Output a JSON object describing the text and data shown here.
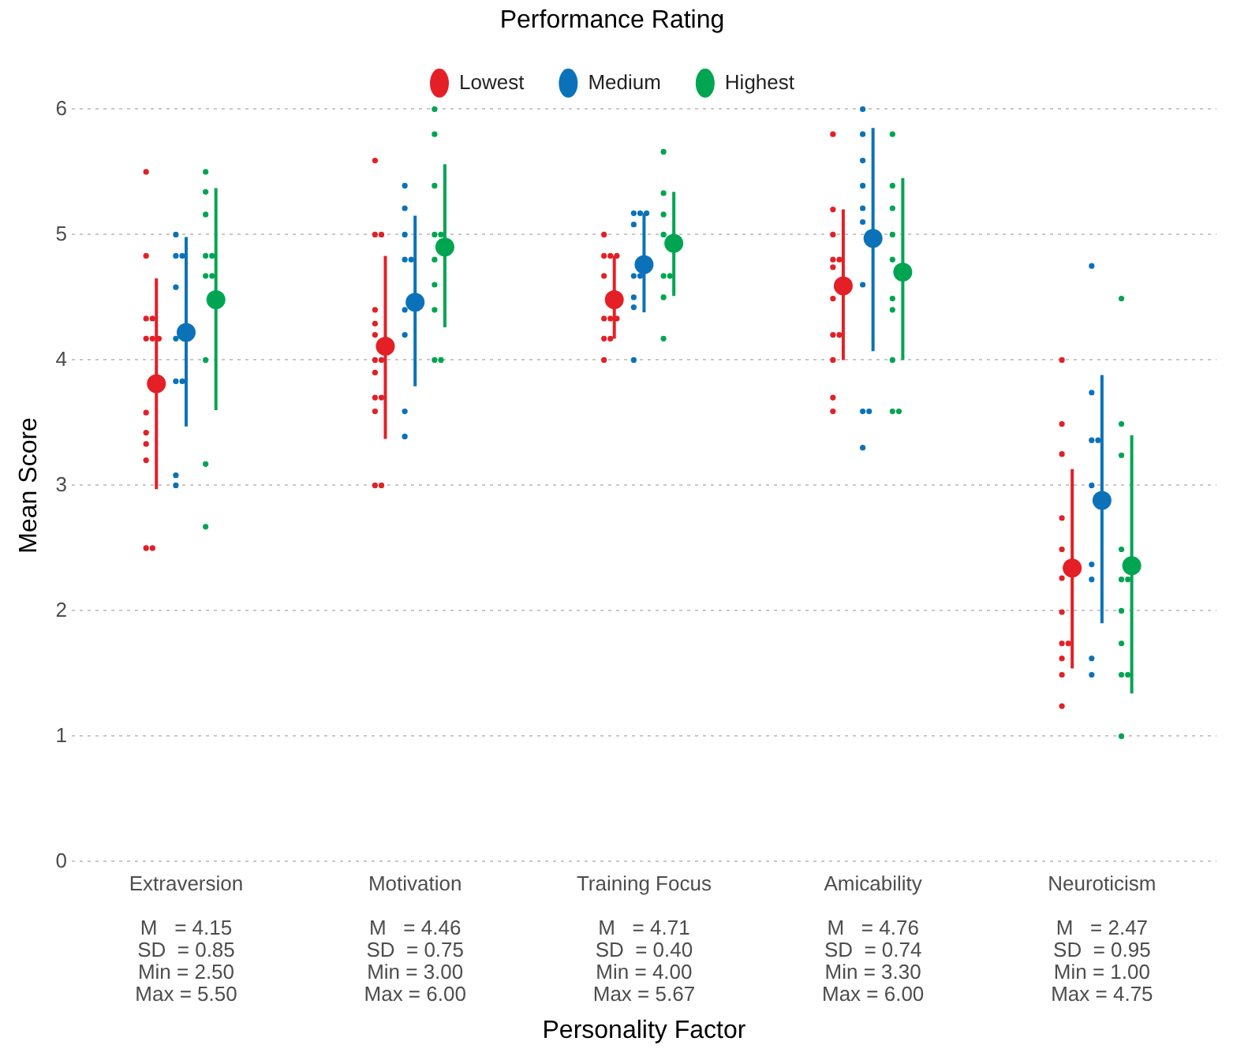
{
  "chart_data": {
    "type": "scatter",
    "xlabel": "Personality Factor",
    "ylabel": "Mean Score",
    "legend_title": "Performance Rating",
    "legend": "top",
    "grid": "y",
    "marker": "circle",
    "categories": [
      "Extraversion",
      "Motivation",
      "Training Focus",
      "Amicability",
      "Neuroticism"
    ],
    "ylim": [
      0,
      6
    ],
    "yticks": [
      0,
      1,
      2,
      3,
      4,
      5,
      6
    ],
    "series": [
      {
        "name": "Lowest",
        "color": "#e41f26",
        "values": [
          3.81,
          4.11,
          4.48,
          4.59,
          2.34
        ],
        "errors": [
          [
            2.97,
            4.65
          ],
          [
            3.37,
            4.83
          ],
          [
            4.17,
            4.83
          ],
          [
            4.0,
            5.2
          ],
          [
            1.54,
            3.13
          ]
        ]
      },
      {
        "name": "Medium",
        "color": "#0b72b9",
        "values": [
          4.22,
          4.46,
          4.76,
          4.97,
          2.88
        ],
        "errors": [
          [
            3.47,
            4.98
          ],
          [
            3.79,
            5.15
          ],
          [
            4.38,
            5.17
          ],
          [
            4.07,
            5.85
          ],
          [
            1.9,
            3.88
          ]
        ]
      },
      {
        "name": "Highest",
        "color": "#00a551",
        "values": [
          4.48,
          4.9,
          4.93,
          4.7,
          2.36
        ],
        "errors": [
          [
            3.6,
            5.37
          ],
          [
            4.26,
            5.56
          ],
          [
            4.51,
            5.34
          ],
          [
            4.0,
            5.45
          ],
          [
            1.34,
            3.4
          ]
        ]
      },
      {
        "type": "scatter",
        "color": "#e41f26",
        "x": [
          "Extraversion",
          "Extraversion",
          "Extraversion",
          "Extraversion",
          "Extraversion",
          "Extraversion",
          "Extraversion",
          "Extraversion",
          "Extraversion",
          "Extraversion",
          "Extraversion",
          "Extraversion",
          "Extraversion",
          "Motivation",
          "Motivation",
          "Motivation",
          "Motivation",
          "Motivation",
          "Motivation",
          "Motivation",
          "Motivation",
          "Motivation",
          "Motivation",
          "Motivation",
          "Motivation",
          "Motivation",
          "Motivation",
          "Training Focus",
          "Training Focus",
          "Training Focus",
          "Training Focus",
          "Training Focus",
          "Training Focus",
          "Training Focus",
          "Training Focus",
          "Training Focus",
          "Training Focus",
          "Training Focus",
          "Amicability",
          "Amicability",
          "Amicability",
          "Amicability",
          "Amicability",
          "Amicability",
          "Amicability",
          "Amicability",
          "Amicability",
          "Amicability",
          "Amicability",
          "Amicability",
          "Neuroticism",
          "Neuroticism",
          "Neuroticism",
          "Neuroticism",
          "Neuroticism",
          "Neuroticism",
          "Neuroticism",
          "Neuroticism",
          "Neuroticism",
          "Neuroticism",
          "Neuroticism",
          "Neuroticism"
        ],
        "values": [
          5.5,
          4.83,
          4.33,
          4.33,
          4.17,
          4.17,
          4.17,
          3.58,
          3.42,
          3.33,
          3.2,
          2.5,
          2.5,
          5.59,
          5.0,
          5.0,
          4.4,
          4.29,
          4.2,
          4.0,
          4.0,
          3.9,
          3.7,
          3.7,
          3.59,
          3.0,
          3.0,
          5.0,
          4.83,
          4.83,
          4.83,
          4.67,
          4.33,
          4.33,
          4.33,
          4.17,
          4.17,
          4.0,
          5.8,
          5.2,
          5.0,
          4.8,
          4.8,
          4.74,
          4.49,
          4.2,
          4.2,
          4.0,
          3.7,
          3.59,
          4.0,
          3.49,
          3.25,
          2.74,
          2.49,
          2.26,
          1.99,
          1.74,
          1.74,
          1.62,
          1.49,
          1.24
        ]
      },
      {
        "type": "scatter",
        "color": "#0b72b9",
        "x": [
          "Extraversion",
          "Extraversion",
          "Extraversion",
          "Extraversion",
          "Extraversion",
          "Extraversion",
          "Extraversion",
          "Extraversion",
          "Extraversion",
          "Motivation",
          "Motivation",
          "Motivation",
          "Motivation",
          "Motivation",
          "Motivation",
          "Motivation",
          "Motivation",
          "Motivation",
          "Training Focus",
          "Training Focus",
          "Training Focus",
          "Training Focus",
          "Training Focus",
          "Training Focus",
          "Training Focus",
          "Training Focus",
          "Training Focus",
          "Amicability",
          "Amicability",
          "Amicability",
          "Amicability",
          "Amicability",
          "Amicability",
          "Amicability",
          "Amicability",
          "Amicability",
          "Amicability",
          "Neuroticism",
          "Neuroticism",
          "Neuroticism",
          "Neuroticism",
          "Neuroticism",
          "Neuroticism",
          "Neuroticism",
          "Neuroticism",
          "Neuroticism"
        ],
        "values": [
          5.0,
          4.83,
          4.83,
          4.58,
          4.17,
          3.83,
          3.83,
          3.08,
          3.0,
          5.39,
          5.21,
          5.0,
          4.8,
          4.8,
          4.4,
          4.2,
          3.59,
          3.39,
          5.17,
          5.17,
          5.17,
          5.08,
          4.67,
          4.67,
          4.5,
          4.42,
          4.0,
          6.0,
          5.8,
          5.59,
          5.39,
          5.21,
          5.1,
          4.6,
          3.59,
          3.59,
          3.3,
          4.75,
          3.74,
          3.36,
          3.36,
          3.0,
          2.37,
          2.25,
          1.62,
          1.49
        ]
      },
      {
        "type": "scatter",
        "color": "#00a551",
        "x": [
          "Extraversion",
          "Extraversion",
          "Extraversion",
          "Extraversion",
          "Extraversion",
          "Extraversion",
          "Extraversion",
          "Extraversion",
          "Extraversion",
          "Extraversion",
          "Motivation",
          "Motivation",
          "Motivation",
          "Motivation",
          "Motivation",
          "Motivation",
          "Motivation",
          "Motivation",
          "Motivation",
          "Motivation",
          "Training Focus",
          "Training Focus",
          "Training Focus",
          "Training Focus",
          "Training Focus",
          "Training Focus",
          "Training Focus",
          "Training Focus",
          "Amicability",
          "Amicability",
          "Amicability",
          "Amicability",
          "Amicability",
          "Amicability",
          "Amicability",
          "Amicability",
          "Amicability",
          "Amicability",
          "Neuroticism",
          "Neuroticism",
          "Neuroticism",
          "Neuroticism",
          "Neuroticism",
          "Neuroticism",
          "Neuroticism",
          "Neuroticism",
          "Neuroticism",
          "Neuroticism",
          "Neuroticism"
        ],
        "values": [
          5.5,
          5.34,
          5.16,
          4.83,
          4.83,
          4.67,
          4.67,
          4.0,
          3.17,
          2.67,
          6.0,
          5.8,
          5.39,
          5.0,
          5.0,
          4.8,
          4.6,
          4.4,
          4.0,
          4.0,
          5.66,
          5.33,
          5.16,
          5.0,
          4.67,
          4.67,
          4.5,
          4.17,
          5.8,
          5.39,
          5.21,
          5.0,
          4.8,
          4.49,
          4.4,
          4.0,
          3.59,
          3.59,
          4.49,
          3.49,
          3.24,
          2.49,
          2.25,
          2.25,
          2.0,
          1.74,
          1.49,
          1.49,
          1.0
        ]
      }
    ],
    "annotations": [
      "M   = 4.15\nSD  = 0.85\nMin = 2.50\nMax = 5.50",
      "M   = 4.46\nSD  = 0.75\nMin = 3.00\nMax = 6.00",
      "M   = 4.71\nSD  = 0.40\nMin = 4.00\nMax = 5.67",
      "M   = 4.76\nSD  = 0.74\nMin = 3.30\nMax = 6.00",
      "M   = 2.47\nSD  = 0.95\nMin = 1.00\nMax = 4.75"
    ]
  }
}
